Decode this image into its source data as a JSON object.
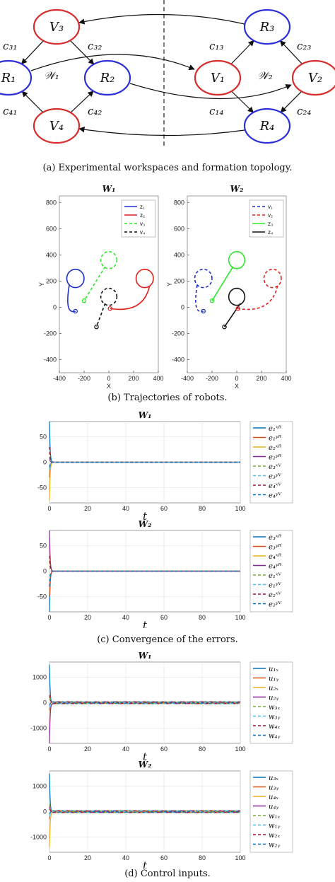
{
  "diagram": {
    "nodes": [
      {
        "id": "V3",
        "label": "V₃",
        "color": "#d62c2c"
      },
      {
        "id": "R1",
        "label": "R₁",
        "color": "#2d2fd6"
      },
      {
        "id": "R2",
        "label": "R₂",
        "color": "#2d2fd6"
      },
      {
        "id": "V4",
        "label": "V₄",
        "color": "#d62c2c"
      },
      {
        "id": "R3",
        "label": "R₃",
        "color": "#2d2fd6"
      },
      {
        "id": "V1",
        "label": "V₁",
        "color": "#d62c2c"
      },
      {
        "id": "V2",
        "label": "V₂",
        "color": "#d62c2c"
      },
      {
        "id": "R4",
        "label": "R₄",
        "color": "#2d2fd6"
      }
    ],
    "edge_labels": {
      "c31": "c₃₁",
      "c32": "c₃₂",
      "c41": "c₄₁",
      "c42": "c₄₂",
      "c13": "c₁₃",
      "c23": "c₂₃",
      "c14": "c₁₄",
      "c24": "c₂₄"
    },
    "workspace_labels": {
      "w1": "𝒲₁",
      "w2": "𝒲₂"
    }
  },
  "captions": {
    "a": "(a) Experimental workspaces and formation topology.",
    "b": "(b) Trajectories of robots.",
    "c": "(c) Convergence of the errors.",
    "d": "(d) Control inputs."
  },
  "chart_data": [
    {
      "type": "line",
      "title": "W₁",
      "xlabel": "X",
      "ylabel": "Y",
      "xlim": [
        -400,
        400
      ],
      "ylim": [
        -500,
        850
      ],
      "xticks": [
        -400,
        -200,
        0,
        200,
        400
      ],
      "yticks": [
        -400,
        -200,
        0,
        200,
        400,
        600,
        800
      ],
      "legend_position": "top-right",
      "series": [
        {
          "name": "z₁",
          "style": "solid",
          "color": "#1f2fc8"
        },
        {
          "name": "z₂",
          "style": "solid",
          "color": "#e0201c"
        },
        {
          "name": "v₃",
          "style": "dashed",
          "color": "#2ee82e"
        },
        {
          "name": "v₄",
          "style": "dashed",
          "color": "#111111"
        }
      ]
    },
    {
      "type": "line",
      "title": "W₂",
      "xlabel": "X",
      "ylabel": "Y",
      "xlim": [
        -400,
        400
      ],
      "ylim": [
        -500,
        850
      ],
      "xticks": [
        -400,
        -200,
        0,
        200,
        400
      ],
      "yticks": [
        -400,
        -200,
        0,
        200,
        400,
        600,
        800
      ],
      "legend_position": "top-right",
      "series": [
        {
          "name": "v₁",
          "style": "dashed",
          "color": "#1f2fc8"
        },
        {
          "name": "v₂",
          "style": "dashed",
          "color": "#e0201c"
        },
        {
          "name": "z₃",
          "style": "solid",
          "color": "#2ee82e"
        },
        {
          "name": "z₄",
          "style": "solid",
          "color": "#111111"
        }
      ]
    },
    {
      "type": "line",
      "title": "W₁",
      "xlabel": "t",
      "xlim": [
        0,
        100
      ],
      "ylim": [
        -80,
        80
      ],
      "xticks": [
        0,
        20,
        40,
        60,
        80,
        100
      ],
      "yticks": [
        -50,
        0,
        50
      ],
      "legend_position": "right",
      "series": [
        {
          "name": "e₁ˣᴿ",
          "color": "#0072bd",
          "style": "solid",
          "initial": 80
        },
        {
          "name": "e₁ʸᴿ",
          "color": "#d95319",
          "style": "solid",
          "initial": -30
        },
        {
          "name": "e₂ˣᴿ",
          "color": "#edb120",
          "style": "solid",
          "initial": -75
        },
        {
          "name": "e₂ʸᴿ",
          "color": "#7e2f8e",
          "style": "solid",
          "initial": 10
        },
        {
          "name": "e₃ˣⱽ",
          "color": "#77ac30",
          "style": "dashed",
          "initial": 20
        },
        {
          "name": "e₃ʸⱽ",
          "color": "#4dbeee",
          "style": "dashed",
          "initial": -15
        },
        {
          "name": "e₄ˣⱽ",
          "color": "#a2142f",
          "style": "dashed",
          "initial": 30
        },
        {
          "name": "e₄ʸⱽ",
          "color": "#0072bd",
          "style": "dashed",
          "initial": -10
        }
      ]
    },
    {
      "type": "line",
      "title": "W₂",
      "xlabel": "t",
      "xlim": [
        0,
        100
      ],
      "ylim": [
        -80,
        80
      ],
      "xticks": [
        0,
        20,
        40,
        60,
        80,
        100
      ],
      "yticks": [
        -50,
        0,
        50
      ],
      "legend_position": "right",
      "series": [
        {
          "name": "e₃ˣᴿ",
          "color": "#0072bd",
          "style": "solid",
          "initial": -80
        },
        {
          "name": "e₃ʸᴿ",
          "color": "#d95319",
          "style": "solid",
          "initial": -50
        },
        {
          "name": "e₄ˣᴿ",
          "color": "#edb120",
          "style": "solid",
          "initial": 50
        },
        {
          "name": "e₄ʸᴿ",
          "color": "#7e2f8e",
          "style": "solid",
          "initial": 80
        },
        {
          "name": "e₁ˣⱽ",
          "color": "#77ac30",
          "style": "dashed",
          "initial": 20
        },
        {
          "name": "e₁ʸⱽ",
          "color": "#4dbeee",
          "style": "dashed",
          "initial": -20
        },
        {
          "name": "e₂ˣⱽ",
          "color": "#a2142f",
          "style": "dashed",
          "initial": 30
        },
        {
          "name": "e₂ʸⱽ",
          "color": "#0072bd",
          "style": "dashed",
          "initial": -30
        }
      ]
    },
    {
      "type": "line",
      "title": "W₁",
      "xlabel": "t",
      "xlim": [
        0,
        100
      ],
      "ylim": [
        -1600,
        1600
      ],
      "xticks": [
        0,
        20,
        40,
        60,
        80,
        100
      ],
      "yticks": [
        -1000,
        0,
        1000
      ],
      "legend_position": "right",
      "oscillation_amplitude": 40,
      "series": [
        {
          "name": "u₁ₓ",
          "color": "#0072bd",
          "style": "solid",
          "initial": 1500
        },
        {
          "name": "u₁ᵧ",
          "color": "#d95319",
          "style": "solid",
          "initial": -300
        },
        {
          "name": "u₂ₓ",
          "color": "#edb120",
          "style": "solid",
          "initial": -1200
        },
        {
          "name": "u₂ᵧ",
          "color": "#7e2f8e",
          "style": "solid",
          "initial": -1600
        },
        {
          "name": "w₃ₓ",
          "color": "#77ac30",
          "style": "dashed",
          "initial": 200
        },
        {
          "name": "w₃ᵧ",
          "color": "#4dbeee",
          "style": "dashed",
          "initial": -200
        },
        {
          "name": "w₄ₓ",
          "color": "#a2142f",
          "style": "dashed",
          "initial": 300
        },
        {
          "name": "w₄ᵧ",
          "color": "#0072bd",
          "style": "dashed",
          "initial": -100
        }
      ]
    },
    {
      "type": "line",
      "title": "W₂",
      "xlabel": "t",
      "xlim": [
        0,
        100
      ],
      "ylim": [
        -1600,
        1600
      ],
      "xticks": [
        0,
        20,
        40,
        60,
        80,
        100
      ],
      "yticks": [
        -1000,
        0,
        1000
      ],
      "legend_position": "right",
      "oscillation_amplitude": 40,
      "series": [
        {
          "name": "u₃ₓ",
          "color": "#0072bd",
          "style": "solid",
          "initial": 1500
        },
        {
          "name": "u₃ᵧ",
          "color": "#d95319",
          "style": "solid",
          "initial": -300
        },
        {
          "name": "u₄ₓ",
          "color": "#edb120",
          "style": "solid",
          "initial": -1400
        },
        {
          "name": "u₄ᵧ",
          "color": "#7e2f8e",
          "style": "solid",
          "initial": 200
        },
        {
          "name": "w₁ₓ",
          "color": "#77ac30",
          "style": "dashed",
          "initial": 300
        },
        {
          "name": "w₁ᵧ",
          "color": "#4dbeee",
          "style": "dashed",
          "initial": -200
        },
        {
          "name": "w₂ₓ",
          "color": "#a2142f",
          "style": "dashed",
          "initial": 100
        },
        {
          "name": "w₂ᵧ",
          "color": "#0072bd",
          "style": "dashed",
          "initial": -100
        }
      ]
    }
  ]
}
